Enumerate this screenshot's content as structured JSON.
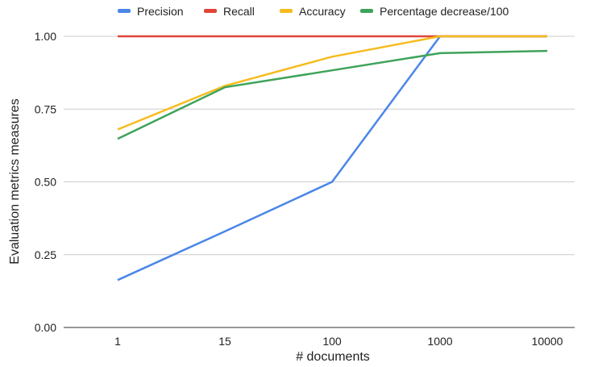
{
  "chart_data": {
    "type": "line",
    "categories": [
      "1",
      "15",
      "100",
      "1000",
      "10000"
    ],
    "series": [
      {
        "name": "Precision",
        "color": "#4a86e8",
        "values": [
          0.163,
          0.33,
          0.5,
          1.0,
          1.0
        ]
      },
      {
        "name": "Recall",
        "color": "#e0443a",
        "values": [
          1.0,
          1.0,
          1.0,
          1.0,
          1.0
        ]
      },
      {
        "name": "Accuracy",
        "color": "#f6bc1f",
        "values": [
          0.68,
          0.83,
          0.93,
          1.0,
          1.0
        ]
      },
      {
        "name": "Percentage decrease/100",
        "color": "#3fa35b",
        "values": [
          0.648,
          0.825,
          0.883,
          0.942,
          0.95
        ]
      }
    ],
    "xlabel": "# documents",
    "ylabel": "Evaluation metrics measures",
    "ylim": [
      0,
      1
    ],
    "yticks": [
      "0.00",
      "0.25",
      "0.50",
      "0.75",
      "1.00"
    ],
    "grid": true,
    "legend_position": "top"
  }
}
